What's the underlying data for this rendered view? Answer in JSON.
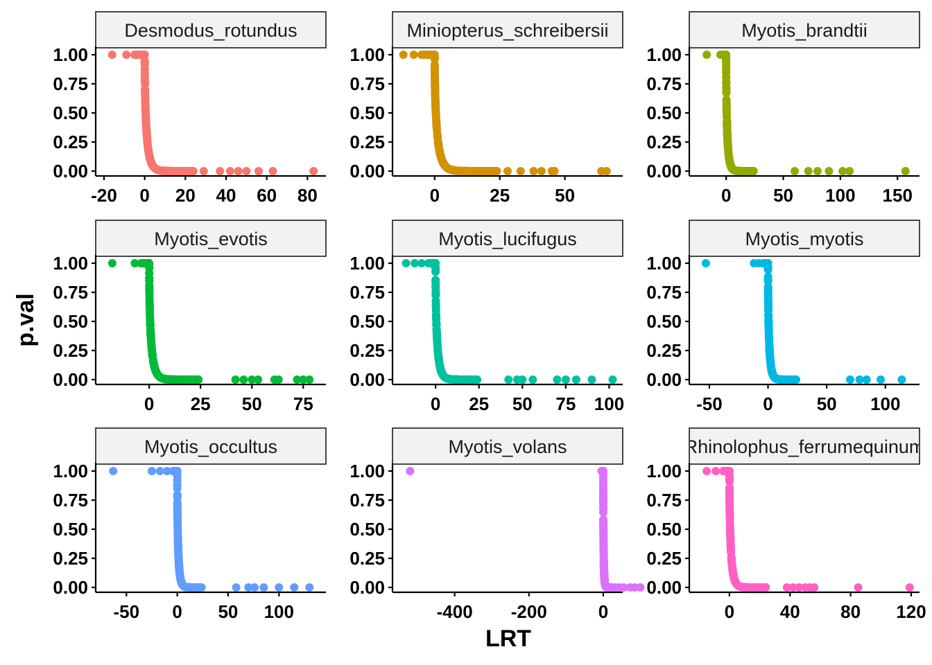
{
  "chart_data": {
    "type": "scatter",
    "xlabel": "LRT",
    "ylabel": "p.val",
    "y_ticks": [
      "0.00",
      "0.25",
      "0.50",
      "0.75",
      "1.00"
    ],
    "ylim": [
      0,
      1
    ],
    "grid": false,
    "legend": "none",
    "panels": [
      {
        "name": "Desmodus_rotundus",
        "color": "#F8766D",
        "xlim": [
          -20,
          85
        ],
        "x_ticks": [
          -20,
          0,
          20,
          40,
          60,
          80
        ],
        "tail_points": [
          [
            -16,
            1
          ],
          [
            -9,
            1
          ],
          [
            -5,
            1
          ],
          [
            29,
            0
          ],
          [
            37,
            0
          ],
          [
            42,
            0
          ],
          [
            46,
            0
          ],
          [
            50,
            0
          ],
          [
            56,
            0
          ],
          [
            63,
            0
          ],
          [
            83,
            0
          ]
        ]
      },
      {
        "name": "Miniopterus_schreibersii",
        "color": "#D39200",
        "xlim": [
          -13,
          69
        ],
        "x_ticks": [
          0,
          25,
          50
        ],
        "tail_points": [
          [
            -12,
            1
          ],
          [
            -8,
            1
          ],
          [
            -5,
            1
          ],
          [
            28,
            0
          ],
          [
            33,
            0
          ],
          [
            38,
            0
          ],
          [
            41,
            0
          ],
          [
            45,
            0
          ],
          [
            46,
            0
          ],
          [
            64,
            0
          ],
          [
            66,
            0
          ]
        ]
      },
      {
        "name": "Myotis_brandtii",
        "color": "#93AA00",
        "xlim": [
          -25,
          162
        ],
        "x_ticks": [
          0,
          50,
          100,
          150
        ],
        "tail_points": [
          [
            -17,
            1
          ],
          [
            -5,
            1
          ],
          [
            60,
            0
          ],
          [
            72,
            0
          ],
          [
            80,
            0
          ],
          [
            90,
            0
          ],
          [
            102,
            0
          ],
          [
            108,
            0
          ],
          [
            157,
            0
          ]
        ]
      },
      {
        "name": "Myotis_evotis",
        "color": "#00BA38",
        "xlim": [
          -22,
          82
        ],
        "x_ticks": [
          0,
          25,
          50,
          75
        ],
        "tail_points": [
          [
            -18,
            1
          ],
          [
            -7,
            1
          ],
          [
            -4,
            1
          ],
          [
            42,
            0
          ],
          [
            46,
            0
          ],
          [
            50,
            0
          ],
          [
            53,
            0
          ],
          [
            61,
            0
          ],
          [
            63,
            0
          ],
          [
            72,
            0
          ],
          [
            75,
            0
          ],
          [
            78,
            0
          ]
        ]
      },
      {
        "name": "Myotis_lucifugus",
        "color": "#00C19F",
        "xlim": [
          -20,
          103
        ],
        "x_ticks": [
          0,
          25,
          50,
          75,
          100
        ],
        "tail_points": [
          [
            -17,
            1
          ],
          [
            -12,
            1
          ],
          [
            -8,
            1
          ],
          [
            42,
            0
          ],
          [
            47,
            0
          ],
          [
            50,
            0
          ],
          [
            56,
            0
          ],
          [
            70,
            0
          ],
          [
            75,
            0
          ],
          [
            81,
            0
          ],
          [
            90,
            0
          ],
          [
            102,
            0
          ]
        ]
      },
      {
        "name": "Myotis_myotis",
        "color": "#00B9E3",
        "xlim": [
          -60,
          122
        ],
        "x_ticks": [
          -50,
          0,
          50,
          100
        ],
        "tail_points": [
          [
            -53,
            1
          ],
          [
            -12,
            1
          ],
          [
            -8,
            1
          ],
          [
            70,
            0
          ],
          [
            78,
            0
          ],
          [
            84,
            0
          ],
          [
            96,
            0
          ],
          [
            114,
            0
          ]
        ]
      },
      {
        "name": "Myotis_occultus",
        "color": "#619CFF",
        "xlim": [
          -72,
          138
        ],
        "x_ticks": [
          -50,
          0,
          50,
          100
        ],
        "tail_points": [
          [
            -63,
            1
          ],
          [
            -25,
            1
          ],
          [
            -17,
            1
          ],
          [
            -10,
            1
          ],
          [
            58,
            0
          ],
          [
            70,
            0
          ],
          [
            76,
            0
          ],
          [
            85,
            0
          ],
          [
            100,
            0
          ],
          [
            115,
            0
          ],
          [
            130,
            0
          ]
        ]
      },
      {
        "name": "Myotis_volans",
        "color": "#DB72FB",
        "xlim": [
          -545,
          30
        ],
        "x_ticks": [
          -400,
          -200,
          0
        ],
        "tail_points": [
          [
            -520,
            1
          ],
          [
            20,
            0
          ],
          [
            25,
            0
          ],
          [
            33,
            0
          ],
          [
            43,
            0
          ],
          [
            55,
            0
          ],
          [
            73,
            0
          ],
          [
            85,
            0
          ],
          [
            100,
            0
          ]
        ]
      },
      {
        "name": "Rhinolophus_ferrumequinum",
        "color": "#FF61C3",
        "xlim": [
          -21,
          120
        ],
        "x_ticks": [
          0,
          40,
          80,
          120
        ],
        "tail_points": [
          [
            -15,
            1
          ],
          [
            -9,
            1
          ],
          [
            -4,
            1
          ],
          [
            38,
            0
          ],
          [
            42,
            0
          ],
          [
            46,
            0
          ],
          [
            50,
            0
          ],
          [
            53,
            0
          ],
          [
            56,
            0
          ],
          [
            85,
            0
          ],
          [
            119,
            0
          ]
        ]
      }
    ]
  }
}
